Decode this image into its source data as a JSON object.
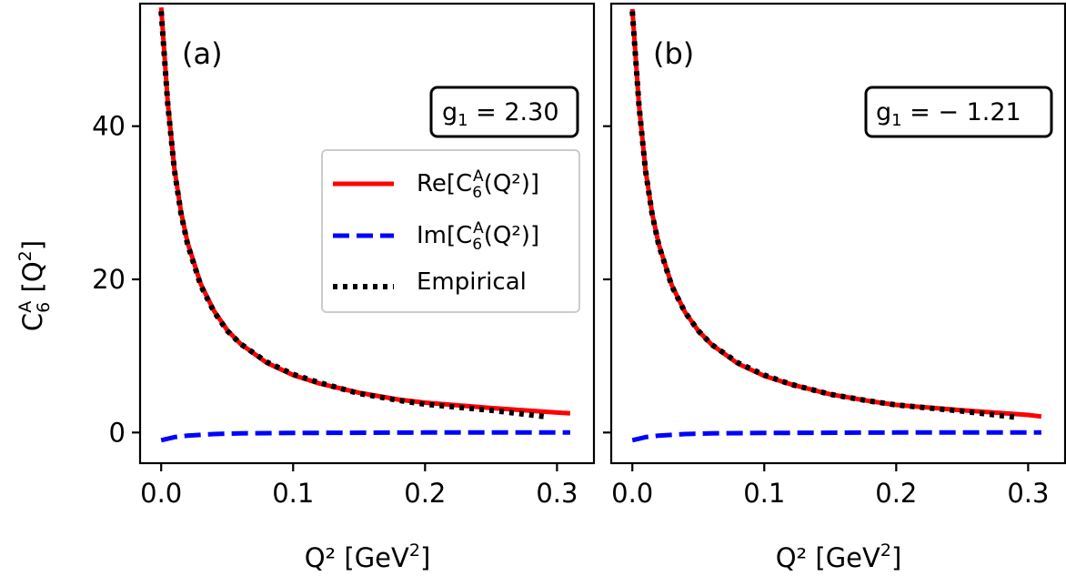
{
  "figure": {
    "ylabel": "C",
    "ylabel_sub": "6",
    "ylabel_sup": "A",
    "ylabel_tail": " [Q",
    "ylabel_tail_sup": "2",
    "ylabel_end": "]",
    "xlabel": "Q² [GeV",
    "xlabel_sup": "2",
    "xlabel_end": "]",
    "shared_y": true
  },
  "legend": {
    "panel": 0,
    "placement": "center-right",
    "items": [
      {
        "label": "Re[C",
        "sub": "6",
        "sup": "A",
        "tail": "(Q²)]",
        "color": "#ff0000",
        "style": "solid"
      },
      {
        "label": "Im[C",
        "sub": "6",
        "sup": "A",
        "tail": "(Q²)]",
        "color": "#0000ff",
        "style": "dashed"
      },
      {
        "label": "Empirical",
        "color": "#000000",
        "style": "dotted"
      }
    ]
  },
  "chart_data": [
    {
      "type": "line",
      "panel_label": "(a)",
      "box": {
        "label": "g",
        "sub": "1",
        "value": " = 2.30"
      },
      "xlim": [
        -0.016,
        0.328
      ],
      "ylim": [
        -4,
        56
      ],
      "xticks": [
        0.0,
        0.1,
        0.2,
        0.3
      ],
      "xtick_labels": [
        "0.0",
        "0.1",
        "0.2",
        "0.3"
      ],
      "yticks": [
        0,
        20,
        40
      ],
      "ytick_labels": [
        "0",
        "20",
        "40"
      ],
      "grid": false,
      "series": [
        {
          "legend_index": 0,
          "x": [
            0.0,
            0.005,
            0.01,
            0.015,
            0.02,
            0.03,
            0.04,
            0.05,
            0.06,
            0.08,
            0.1,
            0.12,
            0.15,
            0.18,
            0.2,
            0.25,
            0.3,
            0.31
          ],
          "y": [
            55.5,
            43.0,
            34.5,
            28.8,
            24.8,
            19.4,
            15.9,
            13.4,
            11.6,
            9.1,
            7.5,
            6.4,
            5.2,
            4.3,
            3.9,
            3.2,
            2.6,
            2.5
          ]
        },
        {
          "legend_index": 1,
          "x": [
            0.0,
            0.01,
            0.02,
            0.04,
            0.06,
            0.1,
            0.2,
            0.31
          ],
          "y": [
            -1.0,
            -0.6,
            -0.4,
            -0.2,
            -0.1,
            -0.05,
            0.0,
            0.0
          ]
        },
        {
          "legend_index": 2,
          "x": [
            0.0,
            0.005,
            0.01,
            0.015,
            0.02,
            0.03,
            0.04,
            0.05,
            0.06,
            0.08,
            0.1,
            0.12,
            0.15,
            0.18,
            0.2,
            0.25,
            0.29
          ],
          "y": [
            55.0,
            42.8,
            34.3,
            28.6,
            24.6,
            19.2,
            15.8,
            13.3,
            11.6,
            9.2,
            7.6,
            6.5,
            5.1,
            4.2,
            3.7,
            2.9,
            2.1
          ]
        }
      ]
    },
    {
      "type": "line",
      "panel_label": "(b)",
      "box": {
        "label": "g",
        "sub": "1",
        "value": " = − 1.21"
      },
      "xlim": [
        -0.016,
        0.328
      ],
      "ylim": [
        -4,
        56
      ],
      "xticks": [
        0.0,
        0.1,
        0.2,
        0.3
      ],
      "xtick_labels": [
        "0.0",
        "0.1",
        "0.2",
        "0.3"
      ],
      "yticks": [
        0,
        20,
        40
      ],
      "ytick_labels": [],
      "grid": false,
      "series": [
        {
          "legend_index": 0,
          "x": [
            0.0,
            0.005,
            0.01,
            0.015,
            0.02,
            0.03,
            0.04,
            0.05,
            0.06,
            0.08,
            0.1,
            0.12,
            0.15,
            0.18,
            0.2,
            0.25,
            0.3,
            0.31
          ],
          "y": [
            55.3,
            42.8,
            34.3,
            28.6,
            24.6,
            19.2,
            15.7,
            13.3,
            11.5,
            9.0,
            7.4,
            6.3,
            5.0,
            4.1,
            3.6,
            2.9,
            2.3,
            2.1
          ]
        },
        {
          "legend_index": 1,
          "x": [
            0.0,
            0.01,
            0.02,
            0.04,
            0.06,
            0.1,
            0.2,
            0.31
          ],
          "y": [
            -1.0,
            -0.6,
            -0.4,
            -0.2,
            -0.1,
            -0.05,
            0.0,
            0.0
          ]
        },
        {
          "legend_index": 2,
          "x": [
            0.0,
            0.005,
            0.01,
            0.015,
            0.02,
            0.03,
            0.04,
            0.05,
            0.06,
            0.08,
            0.1,
            0.12,
            0.15,
            0.18,
            0.2,
            0.25,
            0.29
          ],
          "y": [
            55.0,
            42.7,
            34.2,
            28.5,
            24.5,
            19.1,
            15.7,
            13.3,
            11.5,
            9.1,
            7.5,
            6.3,
            5.0,
            4.1,
            3.6,
            2.8,
            2.0
          ]
        }
      ]
    }
  ]
}
